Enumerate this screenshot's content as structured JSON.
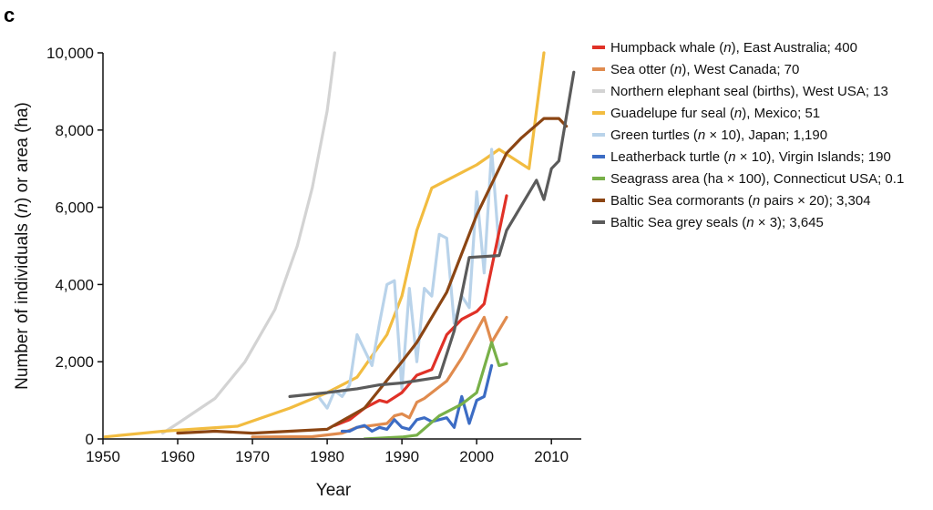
{
  "chart_data": {
    "type": "line",
    "panel_label": "c",
    "xlabel": "Year",
    "ylabel": "Number of individuals (n) or area (ha)",
    "xlim": [
      1950,
      2014
    ],
    "ylim": [
      0,
      10000
    ],
    "xticks": [
      1950,
      1960,
      1970,
      1980,
      1990,
      2000,
      2010
    ],
    "yticks": [
      0,
      2000,
      4000,
      6000,
      8000,
      10000
    ],
    "xtick_labels": [
      "1950",
      "1960",
      "1970",
      "1980",
      "1990",
      "2000",
      "2010"
    ],
    "ytick_labels": [
      "0",
      "2,000",
      "4,000",
      "6,000",
      "8,000",
      "10,000"
    ],
    "legend_position": "right",
    "series": [
      {
        "name": "Northern elephant seal (births), West USA; 13",
        "color": "#d3d3d3",
        "points": [
          [
            1958,
            150
          ],
          [
            1960,
            400
          ],
          [
            1965,
            1050
          ],
          [
            1969,
            2000
          ],
          [
            1973,
            3350
          ],
          [
            1976,
            5000
          ],
          [
            1978,
            6500
          ],
          [
            1980,
            8500
          ],
          [
            1981,
            10000
          ]
        ]
      },
      {
        "name": "Guadelupe fur seal (n), Mexico; 51",
        "color": "#f2bc40",
        "points": [
          [
            1950,
            50
          ],
          [
            1958,
            200
          ],
          [
            1968,
            330
          ],
          [
            1975,
            800
          ],
          [
            1980,
            1200
          ],
          [
            1984,
            1600
          ],
          [
            1988,
            2700
          ],
          [
            1990,
            3700
          ],
          [
            1992,
            5400
          ],
          [
            1994,
            6500
          ],
          [
            2000,
            7100
          ],
          [
            2003,
            7500
          ],
          [
            2007,
            7000
          ],
          [
            2009,
            10000
          ]
        ]
      },
      {
        "name": "Green turtles (n × 10), Japan; 1,190",
        "color": "#b9d3ea",
        "points": [
          [
            1979,
            1050
          ],
          [
            1980,
            800
          ],
          [
            1981,
            1250
          ],
          [
            1982,
            1100
          ],
          [
            1983,
            1400
          ],
          [
            1984,
            2700
          ],
          [
            1985,
            2300
          ],
          [
            1986,
            1900
          ],
          [
            1987,
            3000
          ],
          [
            1988,
            4000
          ],
          [
            1989,
            4100
          ],
          [
            1990,
            1300
          ],
          [
            1991,
            3900
          ],
          [
            1992,
            2000
          ],
          [
            1993,
            3900
          ],
          [
            1994,
            3700
          ],
          [
            1995,
            5300
          ],
          [
            1996,
            5200
          ],
          [
            1997,
            3000
          ],
          [
            1998,
            3700
          ],
          [
            1999,
            3400
          ],
          [
            2000,
            6400
          ],
          [
            2001,
            4300
          ],
          [
            2002,
            7500
          ],
          [
            2003,
            4900
          ]
        ]
      },
      {
        "name": "Humpback whale (n), East Australia; 400",
        "color": "#e03127",
        "points": [
          [
            1981,
            350
          ],
          [
            1983,
            500
          ],
          [
            1985,
            800
          ],
          [
            1987,
            1000
          ],
          [
            1988,
            950
          ],
          [
            1990,
            1200
          ],
          [
            1992,
            1650
          ],
          [
            1994,
            1800
          ],
          [
            1996,
            2700
          ],
          [
            1998,
            3100
          ],
          [
            2000,
            3300
          ],
          [
            2001,
            3500
          ],
          [
            2004,
            6300
          ]
        ]
      },
      {
        "name": "Sea otter (n), West Canada; 70",
        "color": "#e08b4e",
        "points": [
          [
            1970,
            50
          ],
          [
            1978,
            60
          ],
          [
            1982,
            150
          ],
          [
            1984,
            300
          ],
          [
            1986,
            350
          ],
          [
            1988,
            400
          ],
          [
            1989,
            600
          ],
          [
            1990,
            650
          ],
          [
            1991,
            550
          ],
          [
            1992,
            950
          ],
          [
            1993,
            1050
          ],
          [
            1996,
            1500
          ],
          [
            1998,
            2100
          ],
          [
            2001,
            3150
          ],
          [
            2002,
            2500
          ],
          [
            2004,
            3150
          ]
        ]
      },
      {
        "name": "Leatherback turtle (n × 10), Virgin Islands; 190",
        "color": "#3c6cc4",
        "points": [
          [
            1982,
            200
          ],
          [
            1983,
            200
          ],
          [
            1984,
            300
          ],
          [
            1985,
            350
          ],
          [
            1986,
            200
          ],
          [
            1987,
            300
          ],
          [
            1988,
            250
          ],
          [
            1989,
            500
          ],
          [
            1990,
            300
          ],
          [
            1991,
            250
          ],
          [
            1992,
            500
          ],
          [
            1993,
            550
          ],
          [
            1994,
            450
          ],
          [
            1995,
            500
          ],
          [
            1996,
            550
          ],
          [
            1997,
            300
          ],
          [
            1998,
            1100
          ],
          [
            1999,
            400
          ],
          [
            2000,
            1000
          ],
          [
            2001,
            1100
          ],
          [
            2002,
            1900
          ]
        ]
      },
      {
        "name": "Seagrass area (ha × 100), Connecticut USA; 0.1",
        "color": "#78b048",
        "points": [
          [
            1985,
            0
          ],
          [
            1990,
            50
          ],
          [
            1992,
            100
          ],
          [
            1995,
            600
          ],
          [
            1998,
            900
          ],
          [
            2000,
            1200
          ],
          [
            2002,
            2500
          ],
          [
            2003,
            1900
          ],
          [
            2004,
            1950
          ]
        ]
      },
      {
        "name": "Baltic Sea cormorants (n pairs × 20); 3,304",
        "color": "#8b4513",
        "points": [
          [
            1960,
            150
          ],
          [
            1965,
            200
          ],
          [
            1970,
            150
          ],
          [
            1975,
            200
          ],
          [
            1980,
            250
          ],
          [
            1985,
            800
          ],
          [
            1990,
            2000
          ],
          [
            1992,
            2500
          ],
          [
            1996,
            3800
          ],
          [
            2000,
            5800
          ],
          [
            2004,
            7400
          ],
          [
            2006,
            7800
          ],
          [
            2009,
            8300
          ],
          [
            2011,
            8300
          ],
          [
            2012,
            8100
          ]
        ]
      },
      {
        "name": "Baltic Sea grey seals (n × 3); 3,645",
        "color": "#5b5b5b",
        "points": [
          [
            1975,
            1100
          ],
          [
            1980,
            1200
          ],
          [
            1984,
            1300
          ],
          [
            1987,
            1400
          ],
          [
            1990,
            1450
          ],
          [
            1995,
            1600
          ],
          [
            1997,
            2800
          ],
          [
            1999,
            4700
          ],
          [
            2003,
            4750
          ],
          [
            2004,
            5400
          ],
          [
            2008,
            6700
          ],
          [
            2009,
            6200
          ],
          [
            2010,
            7000
          ],
          [
            2011,
            7200
          ],
          [
            2013,
            9500
          ]
        ]
      }
    ],
    "legend_order": [
      3,
      4,
      0,
      1,
      2,
      5,
      6,
      7,
      8
    ]
  }
}
